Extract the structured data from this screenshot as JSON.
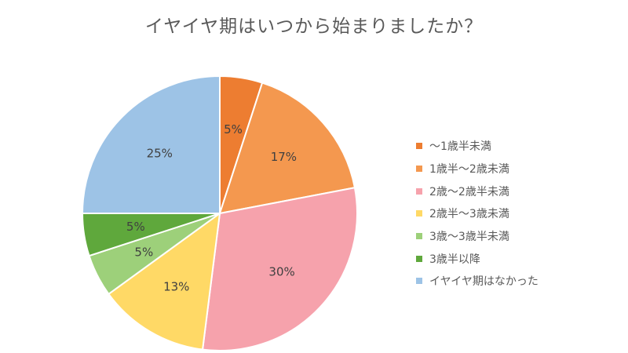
{
  "chart_data": {
    "type": "pie",
    "title": "イヤイヤ期はいつから始まりましたか？",
    "legend_position": "right",
    "slices": [
      {
        "label": "～1歳半未満",
        "value": 5,
        "display": "5%",
        "color": "#ED7D31"
      },
      {
        "label": "1歳半～2歳未満",
        "value": 17,
        "display": "17%",
        "color": "#F4984F"
      },
      {
        "label": "2歳～2歳半未満",
        "value": 30,
        "display": "30%",
        "color": "#F6A2AC"
      },
      {
        "label": "2歳半～3歳未満",
        "value": 13,
        "display": "13%",
        "color": "#FFD966"
      },
      {
        "label": "3歳～3歳半未満",
        "value": 5,
        "display": "5%",
        "color": "#9DD07A"
      },
      {
        "label": "3歳半以降",
        "value": 5,
        "display": "5%",
        "color": "#5FA83C"
      },
      {
        "label": "イヤイヤ期はなかった",
        "value": 25,
        "display": "25%",
        "color": "#9DC3E6"
      }
    ]
  }
}
